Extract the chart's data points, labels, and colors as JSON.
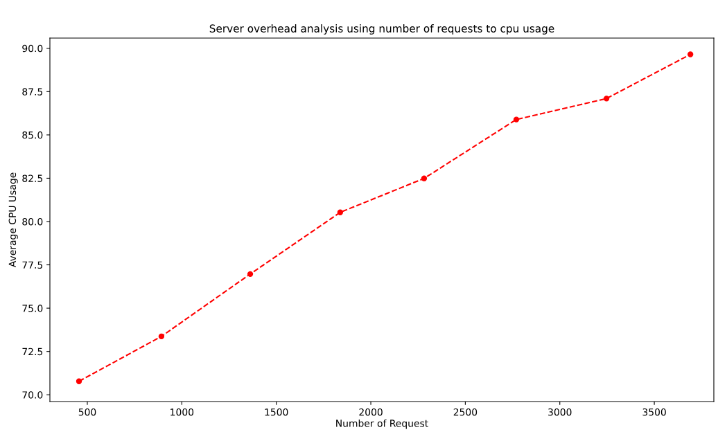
{
  "chart_data": {
    "type": "line",
    "title": "Server overhead analysis using number of requests to cpu usage",
    "xlabel": "Number of Request",
    "ylabel": "Average CPU Usage",
    "x": [
      456,
      892,
      1362,
      1838,
      2282,
      2770,
      3247,
      3691
    ],
    "series": [
      {
        "color": "#ff0000",
        "values": [
          70.78,
          73.37,
          76.97,
          80.53,
          82.49,
          85.89,
          87.1,
          89.65
        ]
      }
    ],
    "xlim": [
      302,
      3815
    ],
    "xticks": [
      500,
      1000,
      1500,
      2000,
      2500,
      3000,
      3500
    ],
    "ylim": [
      69.61,
      90.59
    ],
    "yticks": [
      {
        "value": 70,
        "label": "70.0"
      },
      {
        "value": 72.5,
        "label": "72.5"
      },
      {
        "value": 75,
        "label": "75.0"
      },
      {
        "value": 77.5,
        "label": "77.5"
      },
      {
        "value": 80,
        "label": "80.0"
      },
      {
        "value": 82.5,
        "label": "82.5"
      },
      {
        "value": 85,
        "label": "85.0"
      },
      {
        "value": 87.5,
        "label": "87.5"
      },
      {
        "value": 90,
        "label": "90.0"
      }
    ],
    "marker": "circle",
    "line_style": "dashed",
    "grid": false,
    "legend": false
  }
}
